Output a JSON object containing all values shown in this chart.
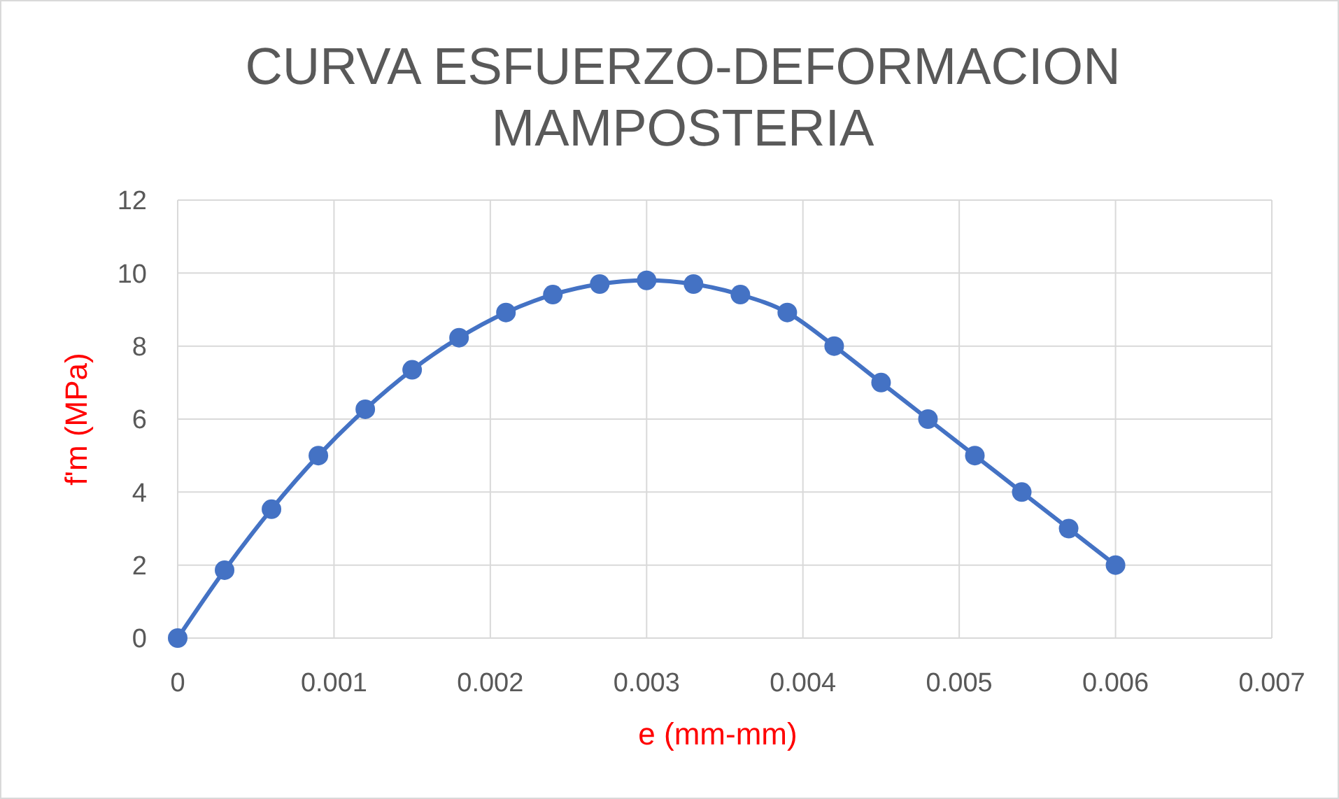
{
  "chart_data": {
    "type": "line",
    "title": "CURVA ESFUERZO-DEFORMACION\nMAMPOSTERIA",
    "xlabel": "e (mm-mm)",
    "ylabel": "f'm (MPa)",
    "x": [
      0,
      0.0003,
      0.0006,
      0.0009,
      0.0012,
      0.0015,
      0.0018,
      0.0021,
      0.0024,
      0.0027,
      0.003,
      0.0033,
      0.0036,
      0.0039,
      0.0042,
      0.0045,
      0.0048,
      0.0051,
      0.0054,
      0.0057,
      0.006
    ],
    "series": [
      {
        "color": "#4472c4",
        "values": [
          0,
          1.86,
          3.53,
          5.0,
          6.27,
          7.35,
          8.23,
          8.92,
          9.41,
          9.7,
          9.8,
          9.7,
          9.41,
          8.92,
          8,
          7,
          6,
          5,
          4,
          3,
          2
        ]
      }
    ],
    "xlim": [
      0,
      0.007
    ],
    "xticks": [
      0,
      0.001,
      0.002,
      0.003,
      0.004,
      0.005,
      0.006,
      0.007
    ],
    "ylim": [
      0,
      12
    ],
    "yticks": [
      0,
      2,
      4,
      6,
      8,
      10,
      12
    ],
    "grid": true,
    "marker": "circle",
    "line_style": "solid"
  }
}
